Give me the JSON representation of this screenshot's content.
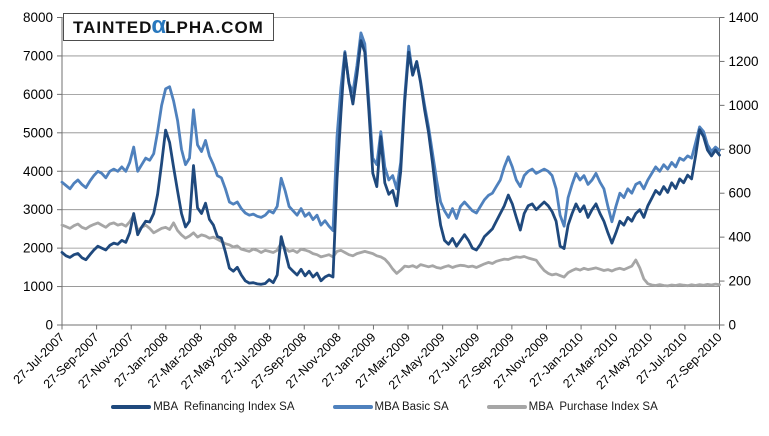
{
  "logo": {
    "part1": "TAINTED",
    "alpha": "α",
    "part2": "LPHA.COM",
    "alpha_color": "#2878BE"
  },
  "colors": {
    "background": "#ffffff",
    "gridline": "#8c8c8c",
    "axis_line": "#707070",
    "axis_text": "#000000",
    "refinancing": "#1F497D",
    "basic": "#4F81BD",
    "purchase": "#A6A6A6"
  },
  "chart_data": {
    "type": "line",
    "title": "",
    "grid": true,
    "legend_position": "bottom",
    "x_axis": {
      "tick_labels": [
        "27-Jul-2007",
        "27-Sep-2007",
        "27-Nov-2007",
        "27-Jan-2008",
        "27-Mar-2008",
        "27-May-2008",
        "27-Jul-2008",
        "27-Sep-2008",
        "27-Nov-2008",
        "27-Jan-2009",
        "27-Mar-2009",
        "27-May-2009",
        "27-Jul-2009",
        "27-Sep-2009",
        "27-Nov-2009",
        "27-Jan-2010",
        "27-Mar-2010",
        "27-May-2010",
        "27-Jul-2010",
        "27-Sep-2010"
      ],
      "rotation_deg": -45
    },
    "left_axis": {
      "min": 0,
      "max": 8000,
      "step": 1000,
      "tick_labels": [
        "0",
        "1000",
        "2000",
        "3000",
        "4000",
        "5000",
        "6000",
        "7000",
        "8000"
      ]
    },
    "right_axis": {
      "min": 0,
      "max": 1400,
      "step": 200,
      "tick_labels": [
        "0",
        "200",
        "400",
        "600",
        "800",
        "1000",
        "1200",
        "1400"
      ]
    },
    "series": [
      {
        "name": "MBA  Refinancing Index SA",
        "axis": "left",
        "color": "#1F497D",
        "values": [
          1890,
          1800,
          1760,
          1830,
          1860,
          1750,
          1700,
          1830,
          1950,
          2050,
          2000,
          1950,
          2070,
          2130,
          2100,
          2200,
          2150,
          2400,
          2900,
          2350,
          2550,
          2700,
          2680,
          2900,
          3400,
          4200,
          5070,
          4750,
          4100,
          3480,
          2900,
          2550,
          2700,
          4150,
          3050,
          2900,
          3170,
          2750,
          2600,
          2300,
          2260,
          1900,
          1480,
          1400,
          1500,
          1300,
          1150,
          1090,
          1100,
          1070,
          1060,
          1080,
          1180,
          1100,
          1300,
          2300,
          1900,
          1500,
          1400,
          1300,
          1450,
          1280,
          1400,
          1250,
          1350,
          1150,
          1250,
          1300,
          1250,
          3800,
          5500,
          7080,
          6300,
          5750,
          6500,
          7400,
          7100,
          5600,
          3950,
          3600,
          4900,
          3700,
          3400,
          3500,
          3100,
          4000,
          5800,
          7100,
          6500,
          6850,
          6300,
          5600,
          5000,
          4200,
          3300,
          2600,
          2200,
          2100,
          2250,
          2050,
          2200,
          2350,
          2200,
          2000,
          1950,
          2100,
          2300,
          2400,
          2500,
          2700,
          2900,
          3100,
          3380,
          3150,
          2800,
          2470,
          2900,
          3100,
          3150,
          3000,
          3100,
          3200,
          3100,
          2950,
          2700,
          2050,
          1990,
          2600,
          2900,
          3150,
          2950,
          3100,
          2800,
          3000,
          3150,
          2900,
          2700,
          2400,
          2130,
          2400,
          2700,
          2600,
          2800,
          2700,
          2900,
          3000,
          2800,
          3100,
          3300,
          3500,
          3400,
          3600,
          3450,
          3700,
          3550,
          3800,
          3700,
          3900,
          3800,
          4400,
          5080,
          4900,
          4550,
          4400,
          4550,
          4420
        ]
      },
      {
        "name": "MBA Basic SA",
        "axis": "right",
        "color": "#4F81BD",
        "values": [
          650,
          635,
          620,
          645,
          660,
          640,
          625,
          655,
          680,
          700,
          690,
          670,
          700,
          710,
          700,
          720,
          700,
          740,
          810,
          700,
          730,
          760,
          750,
          780,
          880,
          1000,
          1075,
          1085,
          1020,
          930,
          800,
          730,
          760,
          980,
          820,
          790,
          840,
          770,
          730,
          680,
          670,
          620,
          560,
          550,
          560,
          530,
          510,
          500,
          505,
          495,
          490,
          500,
          520,
          510,
          540,
          668,
          610,
          540,
          520,
          500,
          530,
          495,
          510,
          480,
          500,
          455,
          475,
          450,
          430,
          857,
          1080,
          1245,
          1100,
          1060,
          1180,
          1330,
          1280,
          1020,
          760,
          730,
          880,
          720,
          660,
          680,
          620,
          740,
          1040,
          1270,
          1140,
          1200,
          1110,
          1000,
          900,
          780,
          660,
          560,
          520,
          490,
          530,
          485,
          540,
          560,
          540,
          520,
          510,
          540,
          570,
          590,
          600,
          630,
          660,
          720,
          766,
          720,
          660,
          630,
          680,
          700,
          710,
          690,
          700,
          710,
          700,
          680,
          620,
          500,
          450,
          580,
          640,
          690,
          660,
          680,
          640,
          660,
          690,
          650,
          620,
          540,
          470,
          540,
          600,
          580,
          620,
          600,
          640,
          650,
          620,
          660,
          690,
          720,
          700,
          730,
          710,
          740,
          720,
          760,
          750,
          770,
          760,
          830,
          902,
          880,
          820,
          790,
          810,
          795
        ]
      },
      {
        "name": "MBA  Purchase Index SA",
        "axis": "right",
        "color": "#A6A6A6",
        "values": [
          455,
          448,
          440,
          452,
          460,
          445,
          438,
          450,
          458,
          465,
          455,
          445,
          460,
          465,
          455,
          460,
          450,
          470,
          500,
          430,
          445,
          455,
          440,
          420,
          430,
          440,
          445,
          435,
          465,
          430,
          410,
          395,
          405,
          420,
          400,
          410,
          405,
          395,
          400,
          390,
          380,
          370,
          365,
          355,
          360,
          345,
          340,
          335,
          345,
          340,
          330,
          340,
          335,
          330,
          340,
          373,
          350,
          335,
          340,
          330,
          345,
          341,
          335,
          325,
          320,
          310,
          315,
          320,
          310,
          335,
          340,
          330,
          320,
          315,
          325,
          330,
          335,
          330,
          325,
          315,
          310,
          300,
          280,
          255,
          235,
          250,
          268,
          265,
          270,
          262,
          275,
          270,
          265,
          270,
          262,
          258,
          265,
          270,
          262,
          268,
          272,
          270,
          265,
          268,
          262,
          270,
          278,
          285,
          280,
          290,
          295,
          300,
          298,
          305,
          310,
          308,
          312,
          305,
          300,
          295,
          270,
          248,
          235,
          228,
          232,
          225,
          218,
          238,
          248,
          256,
          250,
          258,
          252,
          256,
          260,
          254,
          248,
          252,
          246,
          254,
          258,
          252,
          260,
          268,
          296,
          260,
          210,
          188,
          182,
          180,
          184,
          180,
          178,
          182,
          180,
          184,
          181,
          179,
          183,
          180,
          184,
          181,
          185,
          182,
          186,
          183
        ]
      }
    ]
  }
}
